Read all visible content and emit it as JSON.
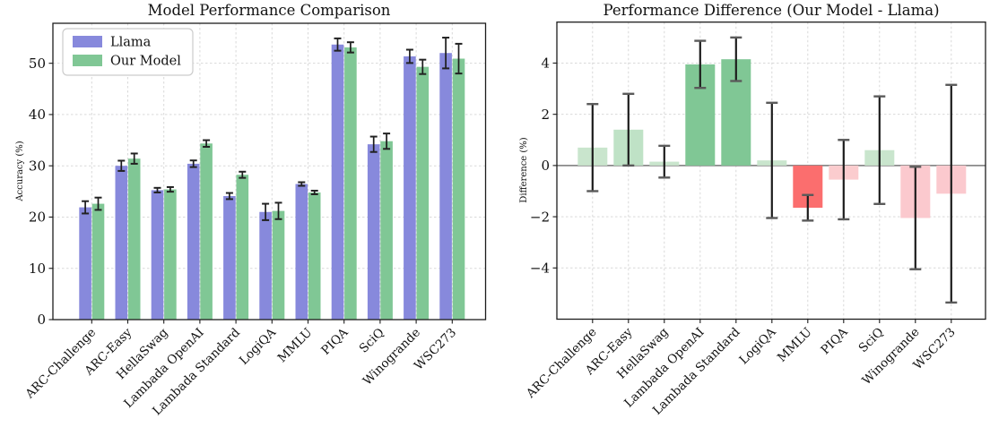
{
  "figure": {
    "background": "#ffffff",
    "grid_color": "#d9d9d9",
    "error_bar_color": "#1c1c1c"
  },
  "chart_data": [
    {
      "type": "bar",
      "title": "Model Performance Comparison",
      "ylabel": "Accuracy (%)",
      "xlabel": "",
      "ylim": [
        0,
        57.8
      ],
      "yticks": [
        0,
        10,
        20,
        30,
        40,
        50
      ],
      "grid": true,
      "legend_position": "upper left",
      "categories": [
        "ARC-Challenge",
        "ARC-Easy",
        "HellaSwag",
        "Lambada OpenAI",
        "Lambada Standard",
        "LogiQA",
        "MMLU",
        "PIQA",
        "SciQ",
        "Winogrande",
        "WSC273"
      ],
      "series": [
        {
          "name": "Llama",
          "color": "#8789dc",
          "values": [
            21.9,
            30.0,
            25.25,
            30.4,
            24.1,
            21.0,
            26.45,
            53.65,
            34.2,
            51.35,
            52.0
          ],
          "errors": [
            1.2,
            1.0,
            0.45,
            0.65,
            0.6,
            1.6,
            0.35,
            1.2,
            1.5,
            1.3,
            3.0
          ]
        },
        {
          "name": "Our Model",
          "color": "#80c795",
          "values": [
            22.6,
            31.4,
            25.4,
            34.35,
            28.25,
            21.2,
            24.8,
            53.1,
            34.8,
            49.3,
            50.9
          ],
          "errors": [
            1.2,
            1.0,
            0.45,
            0.65,
            0.6,
            1.6,
            0.35,
            1.0,
            1.5,
            1.4,
            2.9
          ]
        }
      ]
    },
    {
      "type": "bar",
      "title": "Performance Difference (Our Model - Llama)",
      "ylabel": "Difference (%)",
      "xlabel": "",
      "ylim": [
        -6.0,
        5.6
      ],
      "yticks": [
        -4,
        -2,
        0,
        2,
        4
      ],
      "grid": true,
      "zero_line": true,
      "categories": [
        "ARC-Challenge",
        "ARC-Easy",
        "HellaSwag",
        "Lambada OpenAI",
        "Lambada Standard",
        "LogiQA",
        "MMLU",
        "PIQA",
        "SciQ",
        "Winogrande",
        "WSC273"
      ],
      "values": [
        0.7,
        1.4,
        0.15,
        3.95,
        4.15,
        0.2,
        -1.65,
        -0.55,
        0.6,
        -2.05,
        -1.1
      ],
      "errors": [
        1.7,
        1.4,
        0.62,
        0.92,
        0.85,
        2.25,
        0.5,
        1.55,
        2.1,
        2.0,
        4.25
      ],
      "bar_colors": [
        "#c9e5cd",
        "#bfe2c6",
        "#c9e5cd",
        "#80c795",
        "#80c795",
        "#c9e5cd",
        "#fb6e6e",
        "#fbccce",
        "#c9e5cd",
        "#fbc9ce",
        "#fbc9ce"
      ],
      "positive_color": "#80c795",
      "negative_color": "#fb6e6e",
      "nonsignificant_positive_color": "#c9e5cd",
      "nonsignificant_negative_color": "#fbc9ce"
    }
  ]
}
